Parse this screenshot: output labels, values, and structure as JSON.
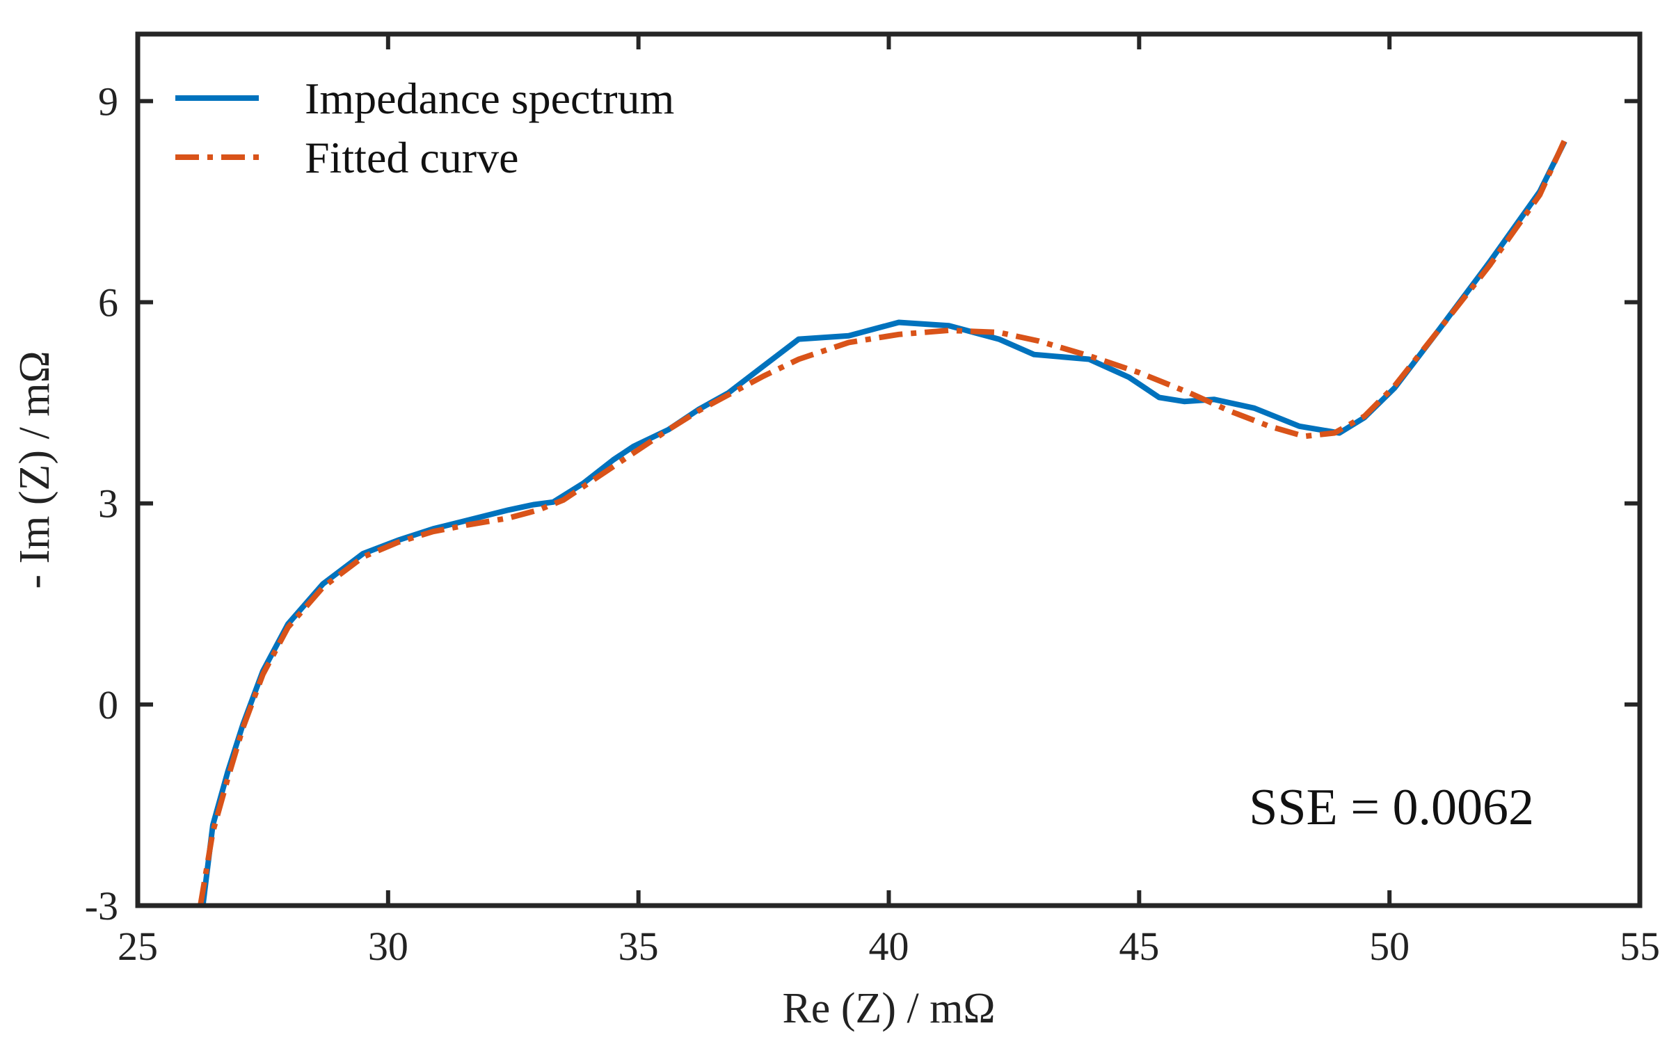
{
  "chart_data": {
    "type": "line",
    "title": "",
    "xlabel": "Re (Z) / mΩ",
    "ylabel": "- Im (Z) / mΩ",
    "xlim": [
      25,
      55
    ],
    "ylim": [
      -3,
      10
    ],
    "xticks": [
      25,
      30,
      35,
      40,
      45,
      50,
      55
    ],
    "yticks": [
      -3,
      0,
      3,
      6,
      9
    ],
    "grid": false,
    "legend_position": "top-left",
    "series": [
      {
        "name": "Impedance spectrum",
        "color": "#0072BD",
        "style": "solid",
        "x": [
          26.3,
          26.5,
          26.8,
          27.1,
          27.5,
          28.0,
          28.7,
          29.5,
          30.2,
          30.9,
          31.6,
          32.4,
          32.9,
          33.3,
          33.9,
          34.5,
          34.9,
          35.6,
          36.2,
          36.8,
          37.5,
          38.2,
          39.2,
          40.2,
          41.2,
          42.2,
          42.9,
          44.0,
          44.8,
          45.4,
          45.9,
          46.5,
          47.3,
          48.2,
          49.0,
          49.5,
          50.1,
          51.0,
          52.0,
          53.0,
          53.5
        ],
        "y": [
          -3.0,
          -1.8,
          -1.0,
          -0.3,
          0.5,
          1.2,
          1.8,
          2.25,
          2.45,
          2.62,
          2.75,
          2.9,
          2.98,
          3.02,
          3.3,
          3.65,
          3.85,
          4.1,
          4.4,
          4.65,
          5.05,
          5.45,
          5.5,
          5.7,
          5.65,
          5.45,
          5.22,
          5.15,
          4.88,
          4.58,
          4.52,
          4.55,
          4.42,
          4.15,
          4.05,
          4.28,
          4.72,
          5.6,
          6.6,
          7.65,
          8.4
        ]
      },
      {
        "name": "Fitted curve",
        "color": "#D95319",
        "style": "dash-dot",
        "x": [
          26.25,
          26.5,
          26.8,
          27.1,
          27.5,
          28.0,
          28.7,
          29.5,
          30.2,
          30.9,
          31.6,
          32.4,
          33.0,
          33.5,
          34.0,
          34.5,
          35.0,
          35.6,
          36.2,
          36.8,
          37.5,
          38.2,
          39.2,
          40.2,
          41.2,
          42.2,
          43.0,
          44.0,
          45.0,
          46.0,
          46.8,
          47.6,
          48.3,
          48.9,
          49.5,
          50.1,
          51.0,
          52.0,
          53.0,
          53.5
        ],
        "y": [
          -3.0,
          -1.9,
          -1.1,
          -0.35,
          0.45,
          1.15,
          1.75,
          2.2,
          2.42,
          2.58,
          2.68,
          2.78,
          2.9,
          3.05,
          3.3,
          3.55,
          3.8,
          4.1,
          4.38,
          4.62,
          4.9,
          5.15,
          5.4,
          5.52,
          5.58,
          5.55,
          5.42,
          5.2,
          4.95,
          4.65,
          4.38,
          4.15,
          4.0,
          4.05,
          4.3,
          4.75,
          5.6,
          6.55,
          7.6,
          8.42
        ]
      }
    ],
    "annotations": [
      {
        "text": "SSE = 0.0062",
        "position": "bottom-right"
      }
    ]
  }
}
